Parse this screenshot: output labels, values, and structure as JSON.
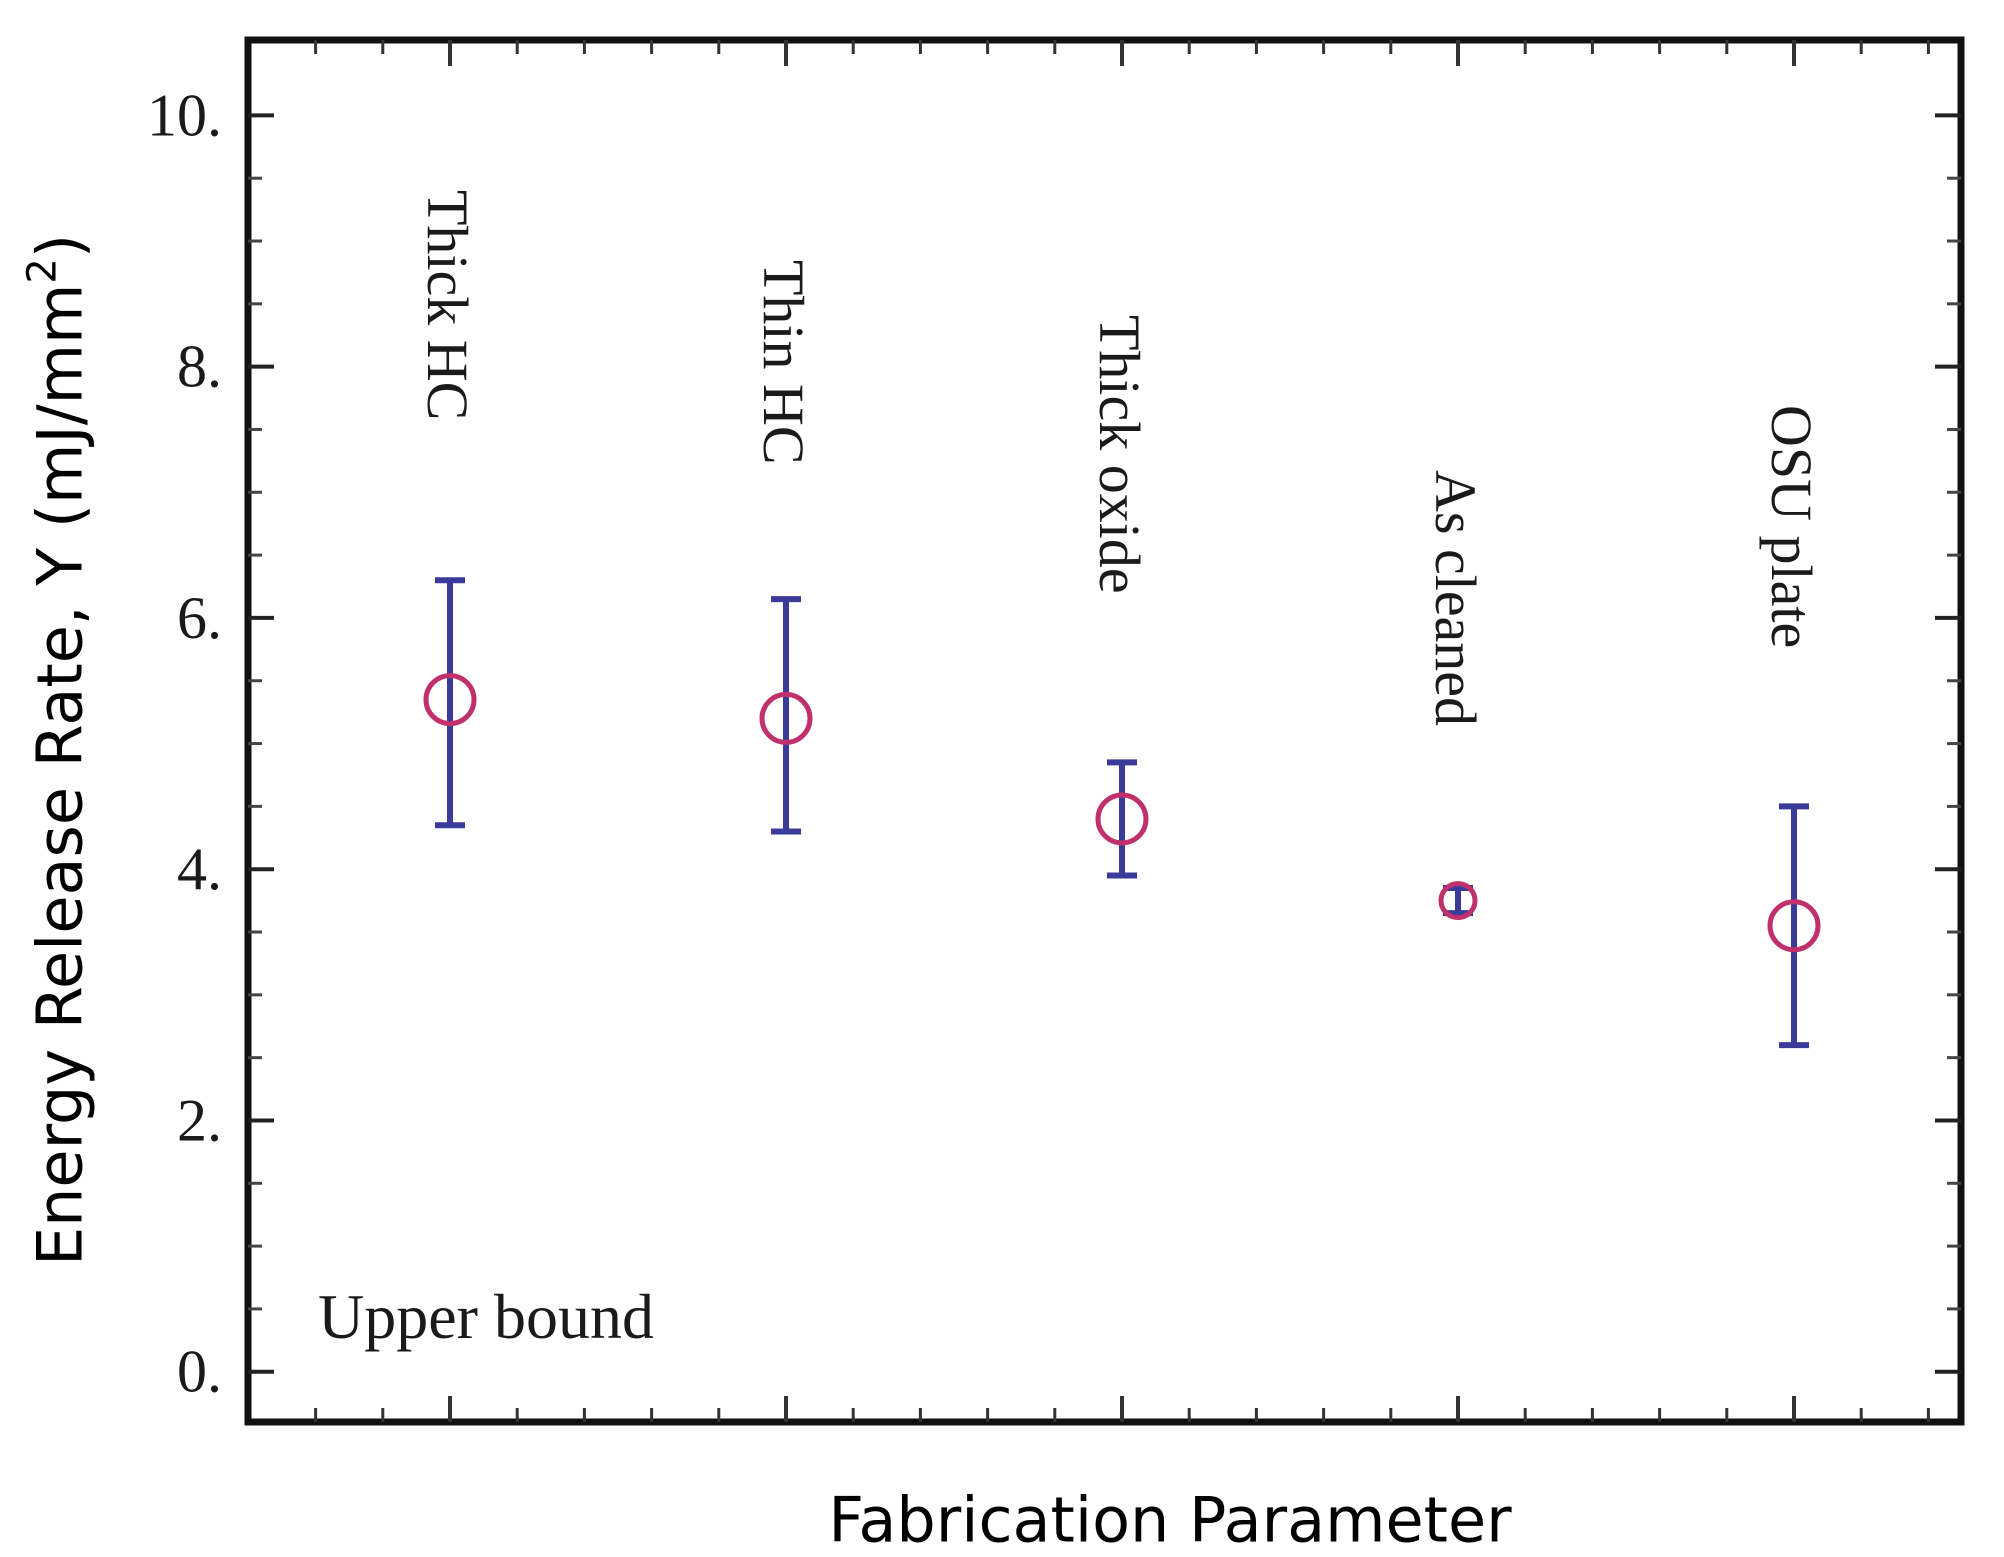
{
  "chart_data": {
    "type": "scatter",
    "categories": [
      "Thick HC",
      "Thin HC",
      "Thick oxide",
      "As cleaned",
      "OSU plate"
    ],
    "values": [
      5.35,
      5.2,
      4.4,
      3.75,
      3.55
    ],
    "error_low": [
      4.35,
      4.3,
      3.95,
      3.65,
      2.6
    ],
    "error_high": [
      6.3,
      6.15,
      4.85,
      3.85,
      4.5
    ],
    "ylabel_main": "Energy Release Rate, Υ (mJ/mm",
    "ylabel_sup": "2",
    "ylabel_close": ")",
    "xlabel": "Fabrication Parameter",
    "annotation": "Upper bound",
    "ylim": [
      -0.4,
      10.6
    ],
    "yticks": [
      0,
      2,
      4,
      6,
      8,
      10
    ],
    "ytick_labels": [
      "0.",
      "2.",
      "4.",
      "6.",
      "8.",
      "10."
    ],
    "grid": false,
    "marker_color": "#c0306a",
    "errorbar_color": "#3a3a9a"
  }
}
